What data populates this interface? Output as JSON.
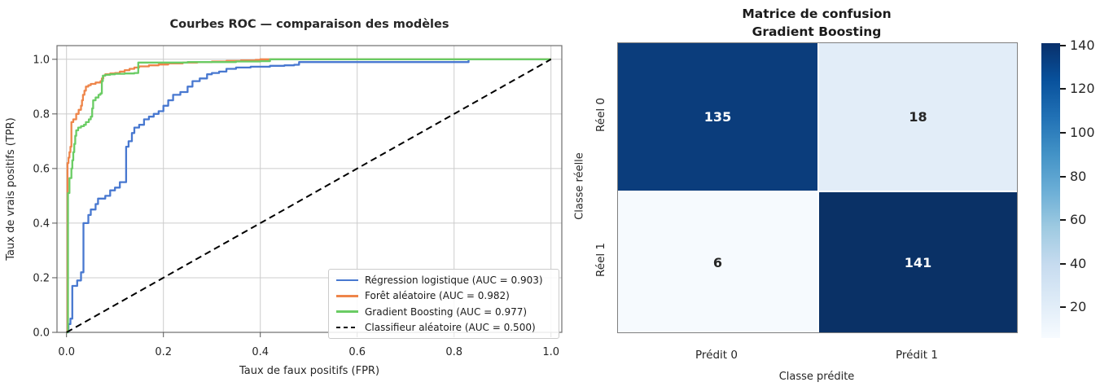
{
  "figure": {
    "background": "#ffffff"
  },
  "chart_data": [
    {
      "type": "line",
      "title": "Courbes ROC — comparaison des modèles",
      "xlabel": "Taux de faux positifs (FPR)",
      "ylabel": "Taux de vrais positifs (TPR)",
      "xlim": [
        -0.02,
        1.04
      ],
      "ylim": [
        0,
        1.05
      ],
      "x_ticks": [
        0.0,
        0.2,
        0.4,
        0.6,
        0.8,
        1.0
      ],
      "y_ticks": [
        0.0,
        0.2,
        0.4,
        0.6,
        0.8,
        1.0
      ],
      "x_tick_labels": [
        "0.0",
        "0.2",
        "0.4",
        "0.6",
        "0.8",
        "1.0"
      ],
      "y_tick_labels": [
        "0.0",
        "0.2",
        "0.4",
        "0.6",
        "0.8",
        "1.0"
      ],
      "grid": true,
      "grid_color": "#cccccc",
      "legend_position": "lower right",
      "series": [
        {
          "name": "Régression logistique (AUC = 0.903)",
          "auc": 0.903,
          "color": "#4878d0",
          "style": "solid",
          "step": true,
          "points": [
            [
              0,
              0
            ],
            [
              0.004,
              0.03
            ],
            [
              0.008,
              0.05
            ],
            [
              0.012,
              0.17
            ],
            [
              0.022,
              0.19
            ],
            [
              0.03,
              0.22
            ],
            [
              0.035,
              0.4
            ],
            [
              0.045,
              0.43
            ],
            [
              0.05,
              0.45
            ],
            [
              0.06,
              0.47
            ],
            [
              0.065,
              0.49
            ],
            [
              0.08,
              0.5
            ],
            [
              0.09,
              0.52
            ],
            [
              0.1,
              0.53
            ],
            [
              0.11,
              0.55
            ],
            [
              0.123,
              0.55
            ],
            [
              0.123,
              0.68
            ],
            [
              0.128,
              0.7
            ],
            [
              0.135,
              0.73
            ],
            [
              0.14,
              0.75
            ],
            [
              0.15,
              0.76
            ],
            [
              0.16,
              0.78
            ],
            [
              0.17,
              0.79
            ],
            [
              0.18,
              0.8
            ],
            [
              0.19,
              0.81
            ],
            [
              0.2,
              0.83
            ],
            [
              0.21,
              0.85
            ],
            [
              0.22,
              0.87
            ],
            [
              0.235,
              0.88
            ],
            [
              0.25,
              0.9
            ],
            [
              0.26,
              0.92
            ],
            [
              0.275,
              0.93
            ],
            [
              0.29,
              0.945
            ],
            [
              0.3,
              0.95
            ],
            [
              0.315,
              0.955
            ],
            [
              0.33,
              0.965
            ],
            [
              0.35,
              0.97
            ],
            [
              0.38,
              0.973
            ],
            [
              0.42,
              0.976
            ],
            [
              0.45,
              0.978
            ],
            [
              0.47,
              0.98
            ],
            [
              0.48,
              0.99
            ],
            [
              0.82,
              0.99
            ],
            [
              0.83,
              1.0
            ],
            [
              1.0,
              1.0
            ]
          ]
        },
        {
          "name": "Forêt aléatoire (AUC = 0.982)",
          "auc": 0.982,
          "color": "#ee854a",
          "style": "solid",
          "step": true,
          "points": [
            [
              0,
              0
            ],
            [
              0.002,
              0.5
            ],
            [
              0.002,
              0.62
            ],
            [
              0.004,
              0.64
            ],
            [
              0.006,
              0.66
            ],
            [
              0.008,
              0.68
            ],
            [
              0.01,
              0.7
            ],
            [
              0.01,
              0.77
            ],
            [
              0.014,
              0.78
            ],
            [
              0.02,
              0.8
            ],
            [
              0.025,
              0.815
            ],
            [
              0.03,
              0.83
            ],
            [
              0.032,
              0.85
            ],
            [
              0.034,
              0.87
            ],
            [
              0.037,
              0.885
            ],
            [
              0.04,
              0.9
            ],
            [
              0.045,
              0.905
            ],
            [
              0.05,
              0.91
            ],
            [
              0.06,
              0.915
            ],
            [
              0.07,
              0.92
            ],
            [
              0.073,
              0.93
            ],
            [
              0.076,
              0.94
            ],
            [
              0.08,
              0.945
            ],
            [
              0.09,
              0.948
            ],
            [
              0.1,
              0.95
            ],
            [
              0.11,
              0.955
            ],
            [
              0.12,
              0.96
            ],
            [
              0.13,
              0.965
            ],
            [
              0.14,
              0.97
            ],
            [
              0.15,
              0.974
            ],
            [
              0.17,
              0.978
            ],
            [
              0.19,
              0.981
            ],
            [
              0.21,
              0.985
            ],
            [
              0.24,
              0.988
            ],
            [
              0.27,
              0.99
            ],
            [
              0.3,
              0.992
            ],
            [
              0.33,
              0.994
            ],
            [
              0.36,
              0.996
            ],
            [
              0.39,
              0.998
            ],
            [
              0.4,
              1.0
            ],
            [
              1.0,
              1.0
            ]
          ]
        },
        {
          "name": "Gradient Boosting (AUC = 0.977)",
          "auc": 0.977,
          "color": "#6acc64",
          "style": "solid",
          "step": true,
          "points": [
            [
              0,
              0
            ],
            [
              0.003,
              0.51
            ],
            [
              0.006,
              0.52
            ],
            [
              0.006,
              0.565
            ],
            [
              0.01,
              0.6
            ],
            [
              0.012,
              0.63
            ],
            [
              0.014,
              0.66
            ],
            [
              0.016,
              0.69
            ],
            [
              0.018,
              0.72
            ],
            [
              0.02,
              0.74
            ],
            [
              0.024,
              0.75
            ],
            [
              0.03,
              0.755
            ],
            [
              0.036,
              0.76
            ],
            [
              0.04,
              0.77
            ],
            [
              0.046,
              0.78
            ],
            [
              0.05,
              0.79
            ],
            [
              0.053,
              0.82
            ],
            [
              0.055,
              0.85
            ],
            [
              0.06,
              0.86
            ],
            [
              0.066,
              0.87
            ],
            [
              0.07,
              0.875
            ],
            [
              0.073,
              0.92
            ],
            [
              0.075,
              0.94
            ],
            [
              0.08,
              0.943
            ],
            [
              0.09,
              0.945
            ],
            [
              0.1,
              0.947
            ],
            [
              0.12,
              0.948
            ],
            [
              0.14,
              0.95
            ],
            [
              0.148,
              0.95
            ],
            [
              0.148,
              0.988
            ],
            [
              0.2,
              0.988
            ],
            [
              0.25,
              0.99
            ],
            [
              0.3,
              0.99
            ],
            [
              0.35,
              0.992
            ],
            [
              0.4,
              0.993
            ],
            [
              0.42,
              1.0
            ],
            [
              1.0,
              1.0
            ]
          ]
        },
        {
          "name": "Classifieur aléatoire (AUC = 0.500)",
          "auc": 0.5,
          "color": "#000000",
          "style": "dashed",
          "step": false,
          "points": [
            [
              0,
              0
            ],
            [
              1,
              1
            ]
          ]
        }
      ]
    },
    {
      "type": "heatmap",
      "title_lines": [
        "Matrice de confusion",
        "Gradient Boosting"
      ],
      "xlabel": "Classe prédite",
      "ylabel": "Classe réelle",
      "col_labels": [
        "Prédit 0",
        "Prédit 1"
      ],
      "row_labels": [
        "Réel 0",
        "Réel 1"
      ],
      "values": [
        [
          135,
          18
        ],
        [
          6,
          141
        ]
      ],
      "cell_colors": [
        [
          "#0b3d7c",
          "#e2edf8"
        ],
        [
          "#f6fafe",
          "#0a3166"
        ]
      ],
      "cell_text_colors": [
        [
          "#ffffff",
          "#262626"
        ],
        [
          "#262626",
          "#ffffff"
        ]
      ],
      "colormap": "Blues",
      "colorbar": {
        "vmin": 6,
        "vmax": 141,
        "tick_values": [
          20,
          40,
          60,
          80,
          100,
          120,
          140
        ]
      }
    }
  ]
}
